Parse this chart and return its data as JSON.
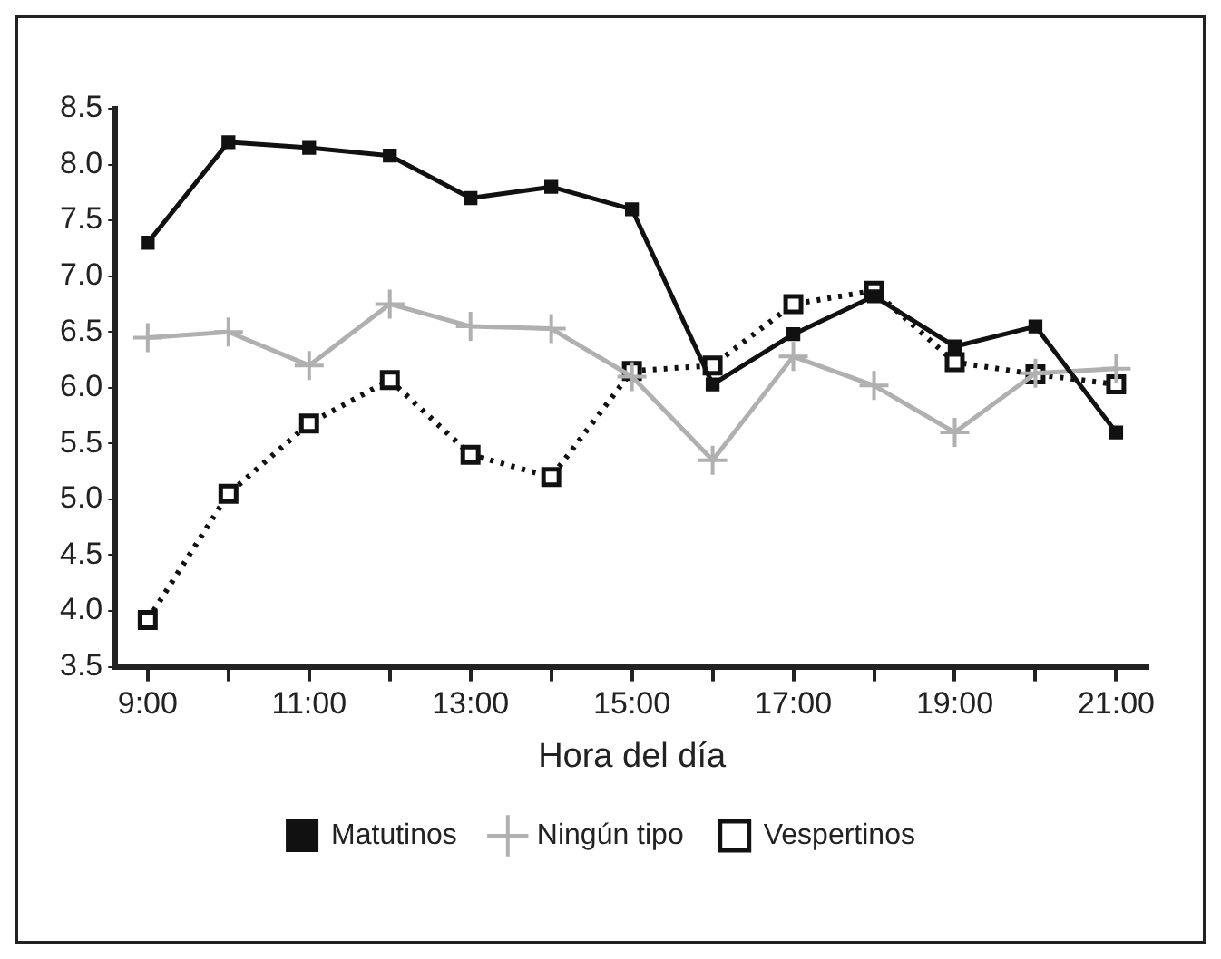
{
  "chart_data": {
    "type": "line",
    "xlabel": "Hora del día",
    "x": [
      9,
      10,
      11,
      12,
      13,
      14,
      15,
      16,
      17,
      18,
      19,
      20,
      21
    ],
    "xlim": [
      8.6,
      21.4
    ],
    "xticks": [
      {
        "value": 9,
        "label": "9:00"
      },
      {
        "value": 10,
        "label": null
      },
      {
        "value": 11,
        "label": "11:00"
      },
      {
        "value": 12,
        "label": null
      },
      {
        "value": 13,
        "label": "13:00"
      },
      {
        "value": 14,
        "label": null
      },
      {
        "value": 15,
        "label": "15:00"
      },
      {
        "value": 16,
        "label": null
      },
      {
        "value": 17,
        "label": "17:00"
      },
      {
        "value": 18,
        "label": null
      },
      {
        "value": 19,
        "label": "19:00"
      },
      {
        "value": 20,
        "label": null
      },
      {
        "value": 21,
        "label": "21:00"
      }
    ],
    "ylim": [
      3.5,
      8.5
    ],
    "yticks": [
      {
        "value": 3.5,
        "label": "3.5"
      },
      {
        "value": 4,
        "label": "4.0"
      },
      {
        "value": 4.5,
        "label": "4.5"
      },
      {
        "value": 5,
        "label": "5.0"
      },
      {
        "value": 5.5,
        "label": "5.5"
      },
      {
        "value": 6,
        "label": "6.0"
      },
      {
        "value": 6.5,
        "label": "6.5"
      },
      {
        "value": 7,
        "label": "7.0"
      },
      {
        "value": 7.5,
        "label": "7.5"
      },
      {
        "value": 8,
        "label": "8.0"
      },
      {
        "value": 8.5,
        "label": "8.5"
      }
    ],
    "grid": false,
    "legend": "bottom",
    "series": [
      {
        "name": "Matutinos",
        "color": "#111111",
        "marker": "square",
        "line_style": "solid",
        "values": [
          7.3,
          8.2,
          8.15,
          8.08,
          7.7,
          7.8,
          7.6,
          6.03,
          6.48,
          6.82,
          6.37,
          6.55,
          5.6
        ]
      },
      {
        "name": "Ningún tipo",
        "color": "#b0b0b0",
        "marker": "cross",
        "line_style": "solid",
        "values": [
          6.45,
          6.5,
          6.2,
          6.75,
          6.55,
          6.53,
          6.1,
          5.35,
          6.28,
          6.02,
          5.6,
          6.13,
          6.17
        ]
      },
      {
        "name": "Vespertinos",
        "color": "#111111",
        "marker": "square",
        "line_style": "dotted",
        "values": [
          3.92,
          5.05,
          5.68,
          6.07,
          5.4,
          5.2,
          6.15,
          6.2,
          6.75,
          6.87,
          6.23,
          6.12,
          6.03
        ]
      }
    ]
  }
}
